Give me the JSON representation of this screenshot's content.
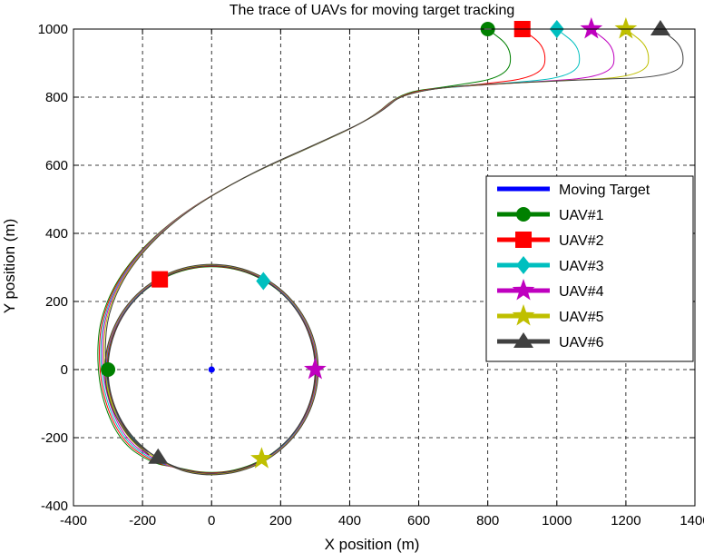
{
  "chart_data": {
    "type": "line",
    "title": "The trace of UAVs for moving target tracking",
    "xlabel": "X position (m)",
    "ylabel": "Y position (m)",
    "xlim": [
      -400,
      1400
    ],
    "ylim": [
      -400,
      1000
    ],
    "xticks": [
      "-400",
      "-200",
      "0",
      "200",
      "400",
      "600",
      "800",
      "1000",
      "1200",
      "1400"
    ],
    "yticks": [
      "-400",
      "-200",
      "0",
      "200",
      "400",
      "600",
      "800",
      "1000"
    ],
    "grid": true,
    "legend_position": "right",
    "target": {
      "name": "Moving Target",
      "color": "#0000ff",
      "x": 0,
      "y": 0
    },
    "circle": {
      "center_x": 0,
      "center_y": 0,
      "radius": 300
    },
    "series": [
      {
        "name": "UAV#1",
        "color": "#008000",
        "marker": "circle",
        "start": [
          800,
          1000
        ],
        "end": [
          -300,
          0
        ]
      },
      {
        "name": "UAV#2",
        "color": "#ff0000",
        "marker": "square",
        "start": [
          900,
          1000
        ],
        "end": [
          -150,
          265
        ]
      },
      {
        "name": "UAV#3",
        "color": "#00bfbf",
        "marker": "diamond",
        "start": [
          1000,
          1000
        ],
        "end": [
          150,
          260
        ]
      },
      {
        "name": "UAV#4",
        "color": "#bf00bf",
        "marker": "star",
        "start": [
          1100,
          1000
        ],
        "end": [
          300,
          0
        ]
      },
      {
        "name": "UAV#5",
        "color": "#bfbf00",
        "marker": "star",
        "start": [
          1200,
          1000
        ],
        "end": [
          145,
          -262
        ]
      },
      {
        "name": "UAV#6",
        "color": "#404040",
        "marker": "triangle",
        "start": [
          1300,
          1000
        ],
        "end": [
          -155,
          -258
        ]
      }
    ]
  }
}
